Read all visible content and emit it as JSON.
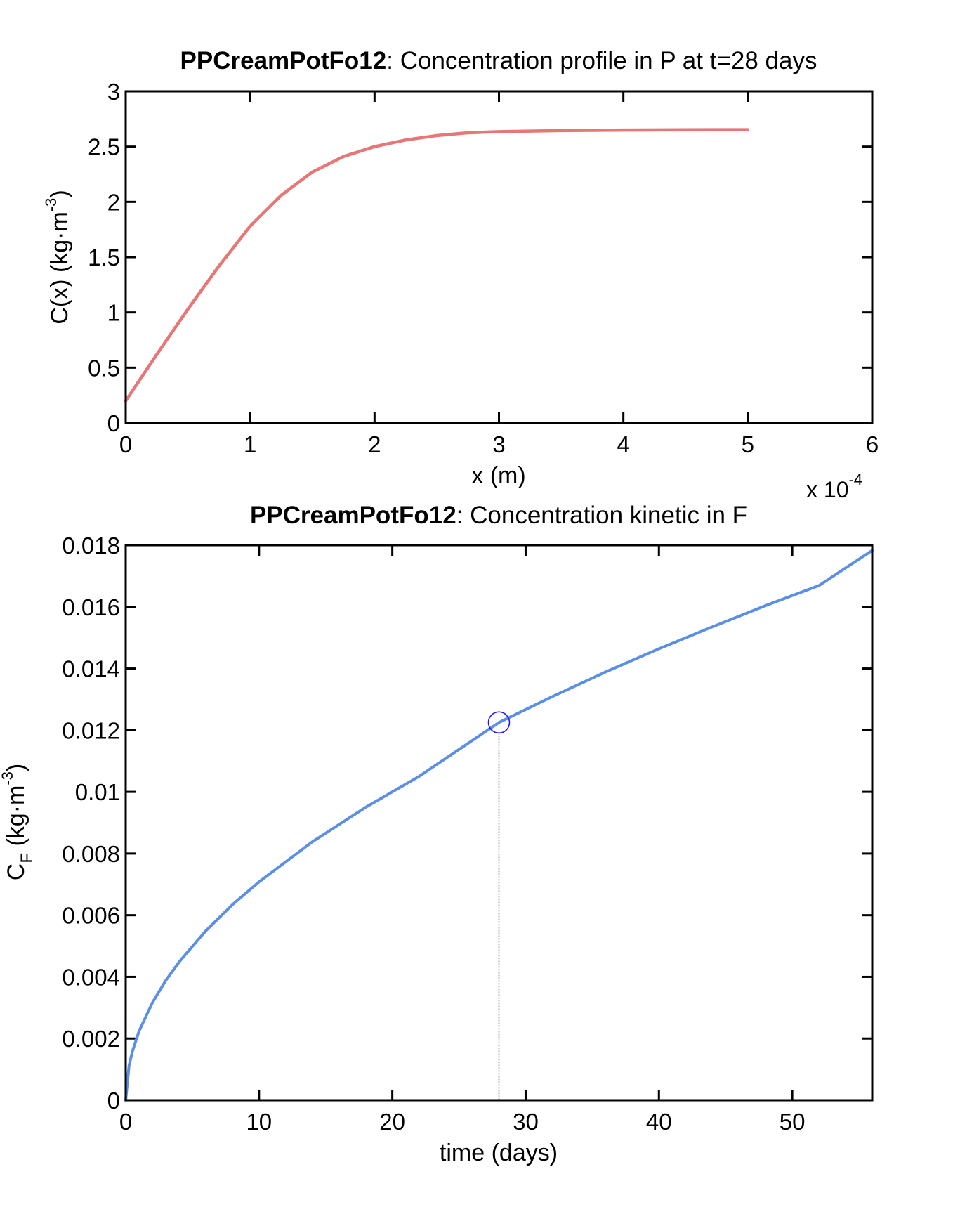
{
  "chart_data": [
    {
      "type": "line",
      "title_bold": "PPCreamPotFo12",
      "title_rest": ": Concentration profile in P at t=28 days",
      "xlabel": "x (m)",
      "ylabel_main": "C(x) (kg·m",
      "ylabel_sup": "-3",
      "ylabel_close": ")",
      "xlim": [
        0,
        6
      ],
      "ylim": [
        0,
        3
      ],
      "x_ticks": [
        0,
        1,
        2,
        3,
        4,
        5,
        6
      ],
      "x_tick_labels": [
        "0",
        "1",
        "2",
        "3",
        "4",
        "5",
        "6"
      ],
      "y_ticks": [
        0,
        0.5,
        1,
        1.5,
        2,
        2.5,
        3
      ],
      "y_tick_labels": [
        "0",
        "0.5",
        "1",
        "1.5",
        "2",
        "2.5",
        "3"
      ],
      "x_multiplier_base": "x 10",
      "x_multiplier_exp": "-4",
      "color": "#e87676",
      "series": [
        {
          "x": [
            0,
            0.25,
            0.5,
            0.75,
            1.0,
            1.25,
            1.5,
            1.75,
            2.0,
            2.25,
            2.5,
            2.75,
            3.0,
            3.5,
            4.0,
            4.5,
            5.0
          ],
          "values": [
            0.2,
            0.62,
            1.03,
            1.42,
            1.78,
            2.06,
            2.27,
            2.41,
            2.5,
            2.56,
            2.6,
            2.625,
            2.635,
            2.645,
            2.65,
            2.652,
            2.653
          ]
        }
      ]
    },
    {
      "type": "line",
      "title_bold": "PPCreamPotFo12",
      "title_rest": ": Concentration kinetic in F",
      "xlabel": "time (days)",
      "ylabel_main": "C",
      "ylabel_sub": "F",
      "ylabel_rest": " (kg·m",
      "ylabel_sup": "-3",
      "ylabel_close": ")",
      "xlim": [
        0,
        56
      ],
      "ylim": [
        0,
        0.018
      ],
      "x_ticks": [
        0,
        10,
        20,
        30,
        40,
        50
      ],
      "x_tick_labels": [
        "0",
        "10",
        "20",
        "30",
        "40",
        "50"
      ],
      "y_ticks": [
        0,
        0.002,
        0.004,
        0.006,
        0.008,
        0.01,
        0.012,
        0.014,
        0.016,
        0.018
      ],
      "y_tick_labels": [
        "0",
        "0.002",
        "0.004",
        "0.006",
        "0.008",
        "0.01",
        "0.012",
        "0.014",
        "0.016",
        "0.018"
      ],
      "color": "#5b8fe6",
      "marker": {
        "x": 28,
        "y": 0.01225,
        "color": "#1a1aff"
      },
      "series": [
        {
          "x": [
            0,
            0.25,
            0.5,
            1,
            2,
            3,
            4,
            6,
            8,
            10,
            14,
            18,
            22,
            28,
            32,
            36,
            40,
            44,
            48,
            52,
            56
          ],
          "values": [
            0,
            0.00112,
            0.00158,
            0.00224,
            0.00316,
            0.00388,
            0.00448,
            0.00549,
            0.00634,
            0.00708,
            0.00838,
            0.0095,
            0.0105,
            0.01225,
            0.01309,
            0.01389,
            0.01464,
            0.01535,
            0.01604,
            0.01669,
            0.01783
          ]
        }
      ]
    }
  ]
}
